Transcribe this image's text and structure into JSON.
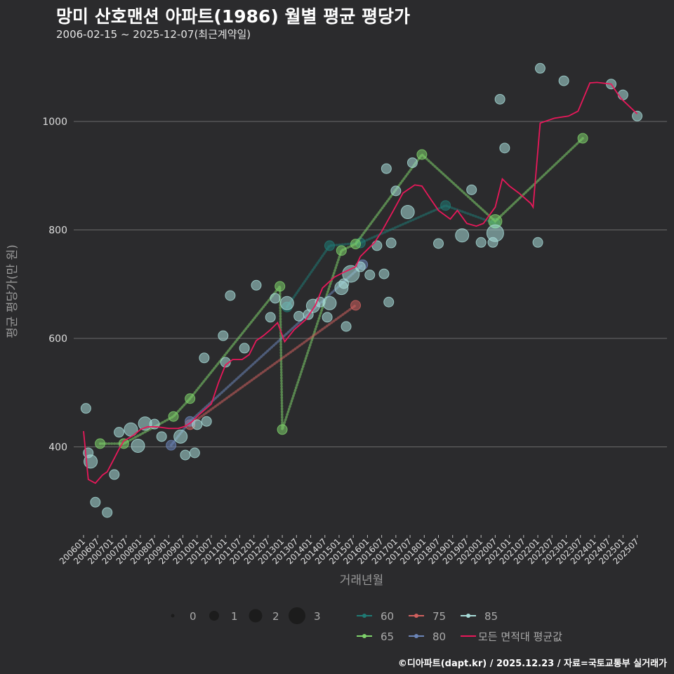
{
  "title": "망미 산호맨션 아파트(1986) 월별 평균 평당가",
  "subtitle": "2006-02-15 ~ 2025-12-07(최근계약일)",
  "footer": "©디아파트(dapt.kr) / 2025.12.23 / 자료=국토교통부 실거래가",
  "chart_data": {
    "type": "scatter",
    "xlabel": "거래년월",
    "ylabel": "평균 평당가(만 원)",
    "ylim": [
      240,
      1120
    ],
    "yticks": [
      400,
      600,
      800,
      1000
    ],
    "xticks": [
      "200601",
      "200607",
      "200701",
      "200707",
      "200801",
      "200807",
      "200901",
      "200907",
      "201001",
      "201007",
      "201101",
      "201107",
      "201201",
      "201207",
      "201301",
      "201307",
      "201401",
      "201407",
      "201501",
      "201507",
      "201601",
      "201607",
      "201701",
      "201707",
      "201801",
      "201807",
      "201901",
      "201907",
      "202001",
      "202007",
      "202101",
      "202107",
      "202201",
      "202207",
      "202301",
      "202307",
      "202401",
      "202407",
      "202501",
      "202507"
    ],
    "grid": true,
    "size_legend": {
      "values": [
        "0",
        "1",
        "2",
        "3"
      ]
    },
    "series": [
      {
        "name": "60",
        "color": "#1f7a74",
        "points": [
          [
            "2013-03",
            658,
            1
          ],
          [
            "2014-09",
            771,
            1
          ],
          [
            "2015-10",
            776,
            1
          ],
          [
            "2018-10",
            845,
            1
          ],
          [
            "2020-07",
            812,
            1
          ]
        ]
      },
      {
        "name": "65",
        "color": "#7fd36b",
        "points": [
          [
            "2006-08",
            406,
            1
          ],
          [
            "2007-06",
            406,
            1
          ],
          [
            "2009-03",
            456,
            1
          ],
          [
            "2009-10",
            489,
            1
          ],
          [
            "2012-12",
            696,
            1
          ],
          [
            "2013-01",
            432,
            1
          ],
          [
            "2015-02",
            762,
            1
          ],
          [
            "2015-08",
            774,
            1
          ],
          [
            "2017-12",
            939,
            1
          ],
          [
            "2020-07",
            816,
            2
          ],
          [
            "2023-08",
            969,
            1
          ]
        ]
      },
      {
        "name": "75",
        "color": "#d0605e",
        "points": [
          [
            "2009-10",
            441,
            1
          ],
          [
            "2015-08",
            661,
            1
          ]
        ]
      },
      {
        "name": "80",
        "color": "#6b85b8",
        "points": [
          [
            "2009-02",
            403,
            1
          ],
          [
            "2009-10",
            447,
            1
          ],
          [
            "2015-11",
            736,
            1
          ]
        ]
      },
      {
        "name": "85",
        "color": "#a8dcd8",
        "points": [
          [
            "2006-02",
            471,
            1
          ],
          [
            "2006-03",
            389,
            1
          ],
          [
            "2006-04",
            373,
            2
          ],
          [
            "2006-06",
            298,
            1
          ],
          [
            "2006-11",
            279,
            1
          ],
          [
            "2007-02",
            349,
            1
          ],
          [
            "2007-04",
            427,
            1
          ],
          [
            "2007-09",
            432,
            2
          ],
          [
            "2007-12",
            402,
            2
          ],
          [
            "2008-03",
            443,
            2
          ],
          [
            "2008-07",
            442,
            1
          ],
          [
            "2008-10",
            419,
            1
          ],
          [
            "2009-06",
            419,
            2
          ],
          [
            "2009-08",
            385,
            1
          ],
          [
            "2009-12",
            389,
            1
          ],
          [
            "2010-01",
            441,
            1
          ],
          [
            "2010-04",
            564,
            1
          ],
          [
            "2010-05",
            447,
            1
          ],
          [
            "2010-12",
            605,
            1
          ],
          [
            "2011-01",
            556,
            1
          ],
          [
            "2011-03",
            679,
            1
          ],
          [
            "2011-09",
            582,
            1
          ],
          [
            "2012-02",
            698,
            1
          ],
          [
            "2012-08",
            639,
            1
          ],
          [
            "2012-10",
            674,
            1
          ],
          [
            "2013-03",
            665,
            2
          ],
          [
            "2013-08",
            641,
            1
          ],
          [
            "2013-12",
            644,
            1
          ],
          [
            "2014-02",
            660,
            2
          ],
          [
            "2014-05",
            667,
            1
          ],
          [
            "2014-08",
            639,
            1
          ],
          [
            "2014-09",
            665,
            2
          ],
          [
            "2015-02",
            693,
            2
          ],
          [
            "2015-03",
            701,
            1
          ],
          [
            "2015-04",
            622,
            1
          ],
          [
            "2015-06",
            719,
            3
          ],
          [
            "2015-10",
            732,
            1
          ],
          [
            "2016-02",
            717,
            1
          ],
          [
            "2016-05",
            771,
            1
          ],
          [
            "2016-08",
            719,
            1
          ],
          [
            "2016-09",
            913,
            1
          ],
          [
            "2016-10",
            667,
            1
          ],
          [
            "2016-11",
            776,
            1
          ],
          [
            "2017-01",
            872,
            1
          ],
          [
            "2017-06",
            833,
            2
          ],
          [
            "2017-08",
            924,
            1
          ],
          [
            "2018-07",
            775,
            1
          ],
          [
            "2019-05",
            790,
            2
          ],
          [
            "2019-09",
            874,
            1
          ],
          [
            "2020-01",
            777,
            1
          ],
          [
            "2020-06",
            777,
            1
          ],
          [
            "2020-07",
            794,
            3
          ],
          [
            "2020-09",
            1041,
            1
          ],
          [
            "2020-11",
            951,
            1
          ],
          [
            "2022-01",
            777,
            1
          ],
          [
            "2022-02",
            1098,
            1
          ],
          [
            "2022-12",
            1075,
            1
          ],
          [
            "2024-08",
            1069,
            1
          ],
          [
            "2025-01",
            1049,
            1
          ],
          [
            "2025-07",
            1010,
            1
          ]
        ]
      }
    ],
    "average": {
      "name": "모든 면적대 평균값",
      "color": "#e8185a",
      "points": [
        [
          "2006-01",
          429
        ],
        [
          "2006-03",
          340
        ],
        [
          "2006-06",
          333
        ],
        [
          "2006-09",
          348
        ],
        [
          "2006-11",
          354
        ],
        [
          "2007-02",
          379
        ],
        [
          "2007-04",
          396
        ],
        [
          "2007-06",
          411
        ],
        [
          "2007-10",
          421
        ],
        [
          "2008-01",
          432
        ],
        [
          "2008-04",
          437
        ],
        [
          "2008-08",
          437
        ],
        [
          "2009-01",
          434
        ],
        [
          "2009-05",
          434
        ],
        [
          "2009-08",
          438
        ],
        [
          "2009-11",
          447
        ],
        [
          "2010-02",
          460
        ],
        [
          "2010-07",
          479
        ],
        [
          "2010-10",
          518
        ],
        [
          "2011-01",
          551
        ],
        [
          "2011-04",
          561
        ],
        [
          "2011-08",
          561
        ],
        [
          "2011-11",
          570
        ],
        [
          "2012-02",
          596
        ],
        [
          "2012-05",
          605
        ],
        [
          "2012-08",
          616
        ],
        [
          "2012-11",
          629
        ],
        [
          "2013-02",
          594
        ],
        [
          "2013-06",
          616
        ],
        [
          "2013-11",
          635
        ],
        [
          "2014-03",
          661
        ],
        [
          "2014-06",
          693
        ],
        [
          "2014-11",
          713
        ],
        [
          "2015-03",
          722
        ],
        [
          "2015-08",
          732
        ],
        [
          "2015-10",
          751
        ],
        [
          "2016-01",
          764
        ],
        [
          "2016-04",
          777
        ],
        [
          "2016-07",
          797
        ],
        [
          "2016-12",
          836
        ],
        [
          "2017-04",
          868
        ],
        [
          "2017-09",
          883
        ],
        [
          "2017-12",
          881
        ],
        [
          "2018-04",
          855
        ],
        [
          "2018-07",
          836
        ],
        [
          "2018-12",
          820
        ],
        [
          "2019-03",
          836
        ],
        [
          "2019-07",
          812
        ],
        [
          "2019-11",
          807
        ],
        [
          "2020-02",
          812
        ],
        [
          "2020-07",
          842
        ],
        [
          "2020-10",
          894
        ],
        [
          "2021-01",
          881
        ],
        [
          "2021-05",
          868
        ],
        [
          "2021-10",
          849
        ],
        [
          "2021-11",
          842
        ],
        [
          "2022-02",
          997
        ],
        [
          "2022-08",
          1006
        ],
        [
          "2023-02",
          1010
        ],
        [
          "2023-06",
          1019
        ],
        [
          "2023-11",
          1071
        ],
        [
          "2024-02",
          1072
        ],
        [
          "2024-08",
          1069
        ],
        [
          "2024-12",
          1043
        ],
        [
          "2025-07",
          1014
        ]
      ]
    }
  }
}
